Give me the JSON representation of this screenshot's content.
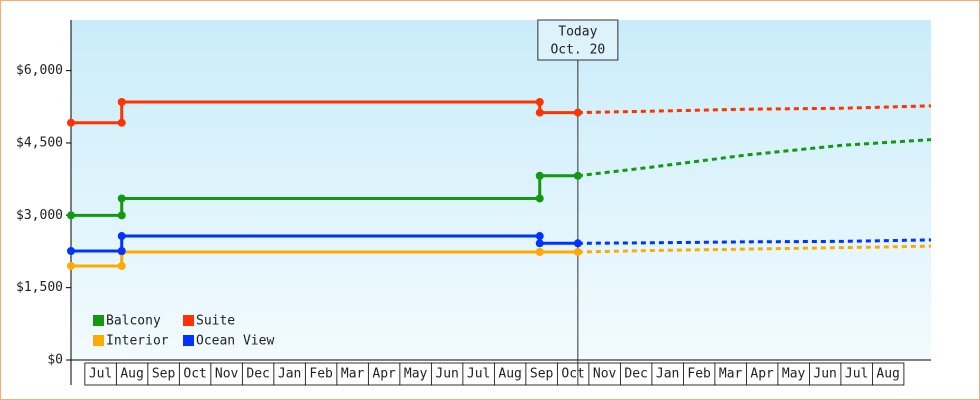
{
  "chart_data": {
    "type": "line",
    "categories": [
      "Jul",
      "Aug",
      "Sep",
      "Oct",
      "Nov",
      "Dec",
      "Jan",
      "Feb",
      "Mar",
      "Apr",
      "May",
      "Jun",
      "Jul",
      "Aug",
      "Sep",
      "Oct",
      "Nov",
      "Dec",
      "Jan",
      "Feb",
      "Mar",
      "Apr",
      "May",
      "Jun",
      "Jul",
      "Aug"
    ],
    "xlim": [
      -0.44,
      26.86
    ],
    "ylim": [
      0,
      7050
    ],
    "yticks": [
      {
        "value": 0,
        "label": "$0"
      },
      {
        "value": 1500,
        "label": "$1,500"
      },
      {
        "value": 3000,
        "label": "$3,000"
      },
      {
        "value": 4500,
        "label": "$4,500"
      },
      {
        "value": 6000,
        "label": "$6,000"
      }
    ],
    "today": {
      "x": 15.65,
      "label": "Today",
      "date": "Oct. 20"
    },
    "series": [
      {
        "name": "Balcony",
        "color": "#119911",
        "x": [
          -0.44,
          1.17,
          1.17,
          14.44,
          14.44,
          15.65
        ],
        "values": [
          3000,
          3000,
          3350,
          3350,
          3820,
          3820
        ],
        "forecast_x": [
          15.65,
          18,
          21,
          24,
          26.86
        ],
        "forecast_values": [
          3820,
          4000,
          4250,
          4450,
          4570
        ]
      },
      {
        "name": "Suite",
        "color": "#ff3300",
        "x": [
          -0.44,
          1.17,
          1.17,
          14.44,
          14.44,
          15.65
        ],
        "values": [
          4920,
          4920,
          5350,
          5350,
          5130,
          5130
        ],
        "forecast_x": [
          15.65,
          18,
          21,
          24,
          26.86
        ],
        "forecast_values": [
          5130,
          5160,
          5200,
          5220,
          5270
        ]
      },
      {
        "name": "Interior",
        "color": "#ffaa00",
        "x": [
          -0.44,
          1.17,
          1.17,
          14.44,
          14.44,
          15.65
        ],
        "values": [
          1950,
          1950,
          2240,
          2240,
          2240,
          2240
        ],
        "forecast_x": [
          15.65,
          18,
          21,
          24,
          26.86
        ],
        "forecast_values": [
          2240,
          2270,
          2300,
          2330,
          2360
        ]
      },
      {
        "name": "Ocean View",
        "color": "#0033ff",
        "x": [
          -0.44,
          1.17,
          1.17,
          14.44,
          14.44,
          15.65
        ],
        "values": [
          2260,
          2260,
          2570,
          2570,
          2420,
          2420
        ],
        "forecast_x": [
          15.65,
          18,
          21,
          24,
          26.86
        ],
        "forecast_values": [
          2420,
          2430,
          2450,
          2460,
          2490
        ]
      }
    ]
  }
}
